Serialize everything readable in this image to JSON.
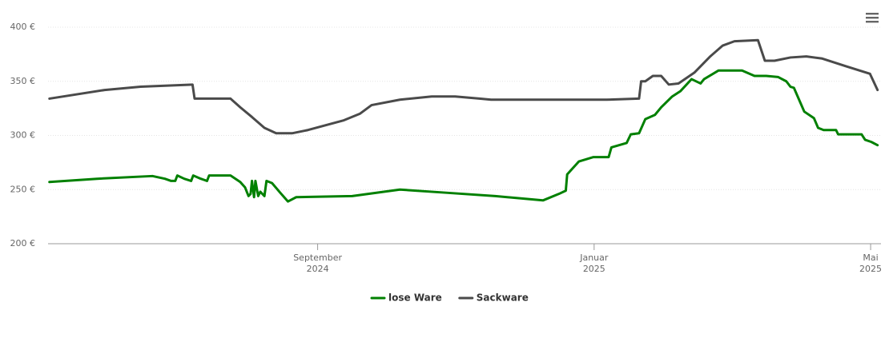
{
  "chart_data": {
    "type": "line",
    "xlim": [
      4.1,
      16.15
    ],
    "xticks": [
      {
        "value": 8,
        "label": "September 2024"
      },
      {
        "value": 12,
        "label": "Januar 2025"
      },
      {
        "value": 16,
        "label": "Mai 2025"
      }
    ],
    "ylim": [
      200,
      400
    ],
    "yticks": [
      {
        "value": 200,
        "label": "200 €"
      },
      {
        "value": 250,
        "label": "250 €"
      },
      {
        "value": 300,
        "label": "300 €"
      },
      {
        "value": 350,
        "label": "350 €"
      },
      {
        "value": 400,
        "label": "400 €"
      }
    ],
    "grid": true,
    "legend": "bottom",
    "series": [
      {
        "name": "lose Ware",
        "color": "#008000",
        "x": [
          4.12,
          4.81,
          5.61,
          5.79,
          5.88,
          5.94,
          5.97,
          6.07,
          6.17,
          6.2,
          6.31,
          6.4,
          6.43,
          6.74,
          6.88,
          6.95,
          7.0,
          7.03,
          7.05,
          7.08,
          7.1,
          7.14,
          7.17,
          7.23,
          7.26,
          7.34,
          7.46,
          7.57,
          7.69,
          8.5,
          9.19,
          9.88,
          10.57,
          11.26,
          11.49,
          11.59,
          11.61,
          11.78,
          11.99,
          12.21,
          12.25,
          12.47,
          12.53,
          12.65,
          12.74,
          12.88,
          12.97,
          13.13,
          13.25,
          13.41,
          13.54,
          13.59,
          13.8,
          14.14,
          14.32,
          14.49,
          14.66,
          14.78,
          14.84,
          14.89,
          15.04,
          15.18,
          15.24,
          15.32,
          15.5,
          15.53,
          15.87,
          15.92,
          16.01,
          16.1
        ],
        "values": [
          257,
          260,
          262.5,
          260,
          258,
          258,
          263,
          260,
          258,
          263,
          260,
          258,
          263,
          263,
          257,
          252,
          244,
          246,
          258,
          243,
          258,
          244,
          248,
          244,
          258,
          256,
          247,
          239,
          243,
          244,
          250,
          247,
          244,
          240,
          246,
          249,
          264,
          276,
          280,
          280,
          289,
          293,
          301,
          302,
          315,
          319,
          326,
          336,
          341,
          352,
          348,
          352,
          360,
          360,
          355,
          355,
          354,
          350,
          345,
          344,
          322,
          316,
          307,
          305,
          305,
          301,
          301,
          296,
          294,
          291
        ]
      },
      {
        "name": "Sackware",
        "color": "#4a4a4a",
        "x": [
          4.12,
          4.92,
          5.44,
          6.19,
          6.22,
          6.74,
          6.88,
          7.05,
          7.23,
          7.4,
          7.63,
          7.86,
          8.38,
          8.61,
          8.78,
          9.19,
          9.65,
          9.99,
          10.34,
          10.51,
          11.49,
          12.18,
          12.65,
          12.68,
          12.74,
          12.85,
          12.97,
          13.08,
          13.22,
          13.45,
          13.68,
          13.86,
          14.03,
          14.37,
          14.47,
          14.61,
          14.84,
          15.07,
          15.3,
          15.64,
          15.99,
          16.1
        ],
        "values": [
          334,
          342,
          345,
          347,
          334,
          334,
          326,
          317,
          307,
          302,
          302,
          305,
          314,
          320,
          328,
          333,
          336,
          336,
          334,
          333,
          333,
          333,
          334,
          350,
          350,
          355,
          355,
          347,
          348,
          358,
          373,
          383,
          387,
          388,
          369,
          369,
          372,
          373,
          371,
          364,
          357,
          342
        ]
      }
    ]
  }
}
